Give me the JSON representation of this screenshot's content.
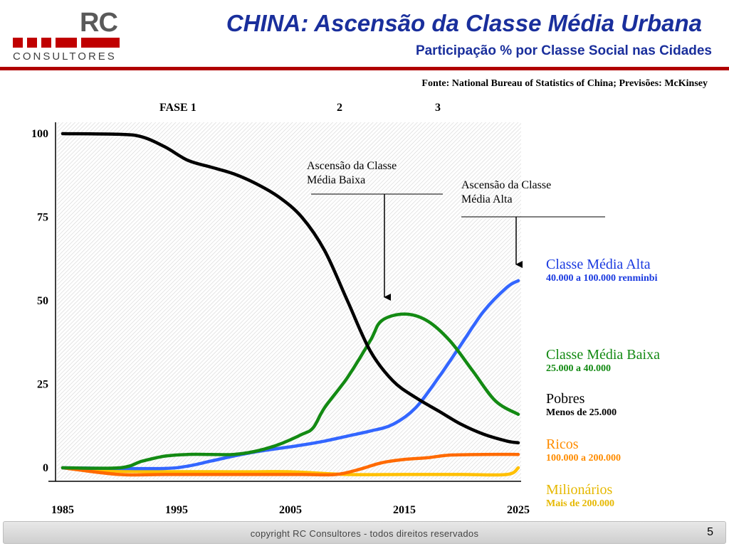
{
  "header": {
    "logo_text": "RC",
    "logo_subtext": "CONSULTORES",
    "title": "CHINA: Ascensão da Classe Média Urbana",
    "subtitle": "Participação % por Classe Social nas Cidades"
  },
  "source": "Fonte: National Bureau of Statistics of China; Previsões: McKinsey",
  "phases": [
    "FASE  1",
    "2",
    "3"
  ],
  "annotations": [
    {
      "text_lines": [
        "Ascensão da Classe",
        "Média Baixa"
      ],
      "points_to": {
        "series": "Classe Média Baixa",
        "year": 2015
      }
    },
    {
      "text_lines": [
        "Ascensão da Classe",
        "Média Alta"
      ],
      "points_to": {
        "series": "Classe Média Alta",
        "year": 2025
      }
    }
  ],
  "legend": [
    {
      "name": "Classe Média Alta",
      "range": "40.000 a 100.000 renminbi",
      "color": "#1a3ae0"
    },
    {
      "name": "Classe Média Baixa",
      "range": "25.000 a 40.000",
      "color": "#138a13"
    },
    {
      "name": "Pobres",
      "range": "Menos de 25.000",
      "color": "#000000"
    },
    {
      "name": "Ricos",
      "range": "100.000 a 200.000",
      "color": "#ff8c00"
    },
    {
      "name": "Milionários",
      "range": "Mais de 200.000",
      "color": "#e6b800"
    }
  ],
  "chart_data": {
    "type": "line",
    "title": "Participação % por Classe Social nas Cidades",
    "xlabel": "",
    "ylabel": "",
    "xlim": [
      1985,
      2025
    ],
    "ylim": [
      0,
      100
    ],
    "x_ticks": [
      1985,
      1995,
      2005,
      2015,
      2025
    ],
    "y_ticks": [
      0,
      25,
      50,
      75,
      100
    ],
    "grid": false,
    "series": [
      {
        "name": "Pobres",
        "color": "#000000",
        "points": [
          [
            1985,
            100
          ],
          [
            1990,
            99.8
          ],
          [
            1992,
            99
          ],
          [
            1994,
            96
          ],
          [
            1996,
            92
          ],
          [
            1998,
            90
          ],
          [
            2000,
            88
          ],
          [
            2002,
            85
          ],
          [
            2004,
            81
          ],
          [
            2006,
            75
          ],
          [
            2008,
            65
          ],
          [
            2010,
            50
          ],
          [
            2012,
            35
          ],
          [
            2014,
            26
          ],
          [
            2016,
            21
          ],
          [
            2018,
            17
          ],
          [
            2020,
            13
          ],
          [
            2022,
            10
          ],
          [
            2024,
            8
          ],
          [
            2025,
            7.5
          ]
        ]
      },
      {
        "name": "Classe Média Baixa",
        "color": "#138a13",
        "points": [
          [
            1985,
            0
          ],
          [
            1990,
            0
          ],
          [
            1992,
            2
          ],
          [
            1994,
            3.5
          ],
          [
            1996,
            4
          ],
          [
            1998,
            4
          ],
          [
            2000,
            4
          ],
          [
            2002,
            5
          ],
          [
            2004,
            7
          ],
          [
            2006,
            10
          ],
          [
            2007,
            12
          ],
          [
            2008,
            18
          ],
          [
            2010,
            27
          ],
          [
            2012,
            38
          ],
          [
            2013,
            44
          ],
          [
            2015,
            46
          ],
          [
            2017,
            44
          ],
          [
            2019,
            38
          ],
          [
            2021,
            29
          ],
          [
            2023,
            20
          ],
          [
            2025,
            16
          ]
        ]
      },
      {
        "name": "Classe Média Alta",
        "color": "#3366ff",
        "points": [
          [
            1985,
            0
          ],
          [
            1990,
            -0.2
          ],
          [
            1994,
            -0.2
          ],
          [
            1996,
            0.5
          ],
          [
            1998,
            2
          ],
          [
            2000,
            3.5
          ],
          [
            2002,
            4.8
          ],
          [
            2004,
            5.8
          ],
          [
            2006,
            6.8
          ],
          [
            2008,
            8
          ],
          [
            2010,
            9.5
          ],
          [
            2012,
            11
          ],
          [
            2014,
            13
          ],
          [
            2016,
            18
          ],
          [
            2018,
            27
          ],
          [
            2020,
            37
          ],
          [
            2022,
            47
          ],
          [
            2024,
            54
          ],
          [
            2025,
            56
          ]
        ]
      },
      {
        "name": "Ricos",
        "color": "#ff6a00",
        "points": [
          [
            1985,
            0
          ],
          [
            1990,
            -2
          ],
          [
            1994,
            -2
          ],
          [
            2000,
            -2
          ],
          [
            2006,
            -2
          ],
          [
            2009,
            -2
          ],
          [
            2011,
            -0.5
          ],
          [
            2013,
            1.5
          ],
          [
            2015,
            2.5
          ],
          [
            2017,
            3
          ],
          [
            2019,
            3.8
          ],
          [
            2022,
            4
          ],
          [
            2025,
            4
          ]
        ]
      },
      {
        "name": "Milionários",
        "color": "#ffc000",
        "points": [
          [
            1985,
            0
          ],
          [
            1990,
            -1
          ],
          [
            2000,
            -1.2
          ],
          [
            2005,
            -1.2
          ],
          [
            2010,
            -2
          ],
          [
            2015,
            -2
          ],
          [
            2020,
            -2
          ],
          [
            2024,
            -2
          ],
          [
            2025,
            0
          ]
        ]
      }
    ]
  },
  "footer": {
    "copyright": "copyright RC Consultores - todos direitos reservados",
    "page": "5"
  }
}
